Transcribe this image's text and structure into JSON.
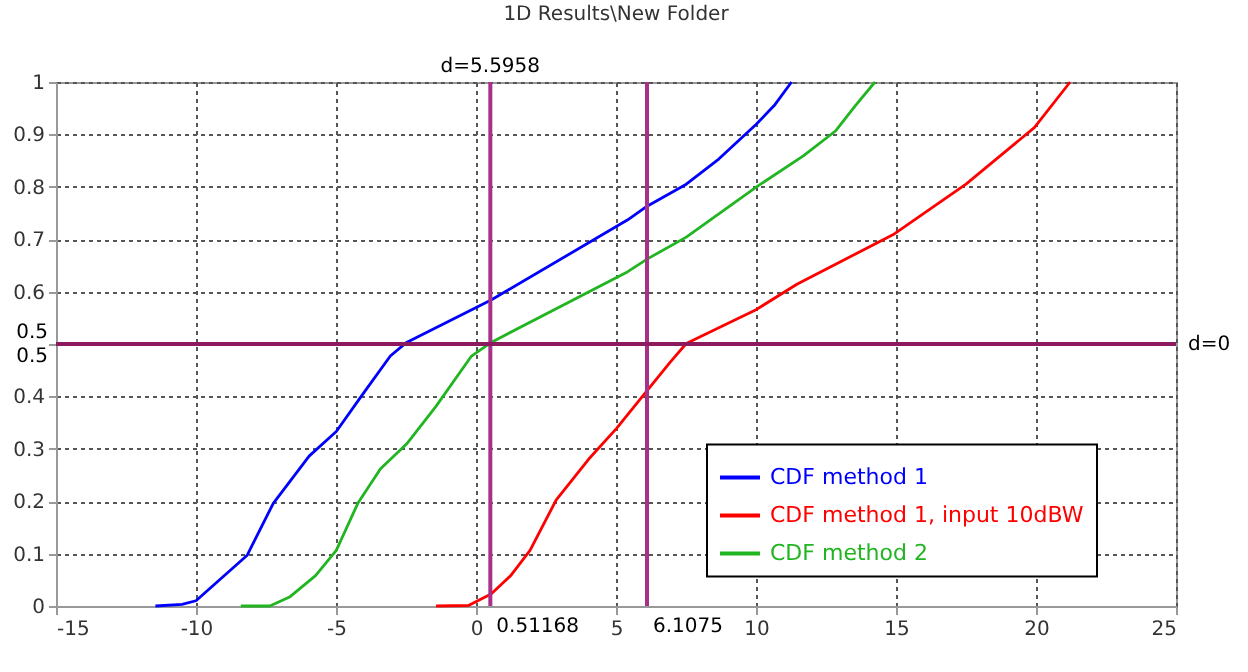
{
  "chart_data": {
    "type": "line",
    "title": "1D Results\\New Folder",
    "series": [
      {
        "name": "CDF method 1",
        "color": "#0000ff",
        "x": [
          -11.45,
          -10.5,
          -10,
          -8.17,
          -7.24,
          -5.96,
          -4.99,
          -4.1,
          -3.06,
          -2.48,
          0.54,
          5.42,
          6.11,
          7.51,
          8.67,
          10.0,
          10.65,
          11.27
        ],
        "values": [
          0,
          0.003,
          0.01,
          0.097,
          0.196,
          0.286,
          0.333,
          0.4,
          0.477,
          0.503,
          0.584,
          0.737,
          0.763,
          0.805,
          0.853,
          0.919,
          0.955,
          1.0
        ]
      },
      {
        "name": "CDF method 1, input 10dBW",
        "color": "#ff0000",
        "x": [
          -1.43,
          -0.27,
          0.54,
          1.24,
          1.93,
          2.86,
          4.02,
          5.02,
          6.11,
          6.93,
          7.51,
          10.02,
          11.46,
          14.94,
          17.5,
          19.94,
          21.22
        ],
        "values": [
          0,
          0.001,
          0.023,
          0.058,
          0.106,
          0.202,
          0.28,
          0.339,
          0.411,
          0.465,
          0.501,
          0.566,
          0.614,
          0.71,
          0.805,
          0.913,
          1.0
        ]
      },
      {
        "name": "CDF method 2",
        "color": "#22b522",
        "x": [
          -8.4,
          -7.36,
          -6.66,
          -5.73,
          -4.99,
          -4.22,
          -3.41,
          -2.48,
          -1.43,
          -0.16,
          0.54,
          5.42,
          6.11,
          7.51,
          10.02,
          11.69,
          12.85,
          13.55,
          14.25
        ],
        "values": [
          0,
          0,
          0.017,
          0.058,
          0.106,
          0.196,
          0.262,
          0.309,
          0.381,
          0.477,
          0.503,
          0.638,
          0.662,
          0.704,
          0.8,
          0.859,
          0.907,
          0.955,
          1.0
        ]
      }
    ],
    "xlim": [
      -15,
      25
    ],
    "xticks": [
      -15,
      -10,
      -5,
      0,
      5,
      10,
      15,
      20,
      25
    ],
    "ylim": [
      0,
      1
    ],
    "yticks": [
      0,
      0.1,
      0.2,
      0.3,
      0.4,
      {
        "value": 0.5,
        "label": null
      },
      0.6,
      0.7,
      0.8,
      0.9,
      1
    ],
    "grid": true,
    "legend": "right",
    "line_style": "solid",
    "marker": "none",
    "ref_lines": [
      {
        "axis": "x",
        "value": 0.51168,
        "label": "0.51168",
        "color": "#a8308a"
      },
      {
        "axis": "x",
        "value": 6.1075,
        "label": "6.1075",
        "color": "#a8308a"
      },
      {
        "axis": "y",
        "value": 0.5,
        "label": "d=0",
        "color": "#8b1a5e"
      }
    ],
    "annotations": [
      "d=5.5958",
      "0.5",
      "0.5"
    ]
  }
}
